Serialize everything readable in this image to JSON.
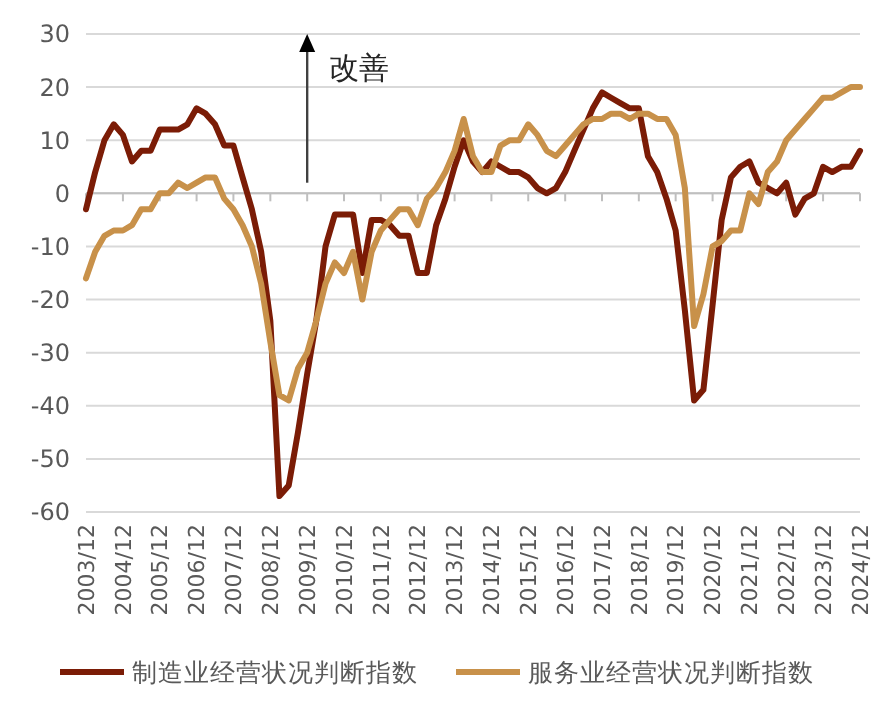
{
  "chart_data": {
    "type": "line",
    "annotations": [
      "改善"
    ],
    "x": [
      "2003-12",
      "2004-03",
      "2004-06",
      "2004-09",
      "2004-12",
      "2005-03",
      "2005-06",
      "2005-09",
      "2005-12",
      "2006-03",
      "2006-06",
      "2006-09",
      "2006-12",
      "2007-03",
      "2007-06",
      "2007-09",
      "2007-12",
      "2008-03",
      "2008-06",
      "2008-09",
      "2008-12",
      "2009-03",
      "2009-06",
      "2009-09",
      "2009-12",
      "2010-03",
      "2010-06",
      "2010-09",
      "2010-12",
      "2011-03",
      "2011-06",
      "2011-09",
      "2011-12",
      "2012-03",
      "2012-06",
      "2012-09",
      "2012-12",
      "2013-03",
      "2013-06",
      "2013-09",
      "2013-12",
      "2014-03",
      "2014-06",
      "2014-09",
      "2014-12",
      "2015-03",
      "2015-06",
      "2015-09",
      "2015-12",
      "2016-03",
      "2016-06",
      "2016-09",
      "2016-12",
      "2017-03",
      "2017-06",
      "2017-09",
      "2017-12",
      "2018-03",
      "2018-06",
      "2018-09",
      "2018-12",
      "2019-03",
      "2019-06",
      "2019-09",
      "2019-12",
      "2020-03",
      "2020-06",
      "2020-09",
      "2020-12",
      "2021-03",
      "2021-06",
      "2021-09",
      "2021-12",
      "2022-03",
      "2022-06",
      "2022-09",
      "2022-12",
      "2023-03",
      "2023-06",
      "2023-09",
      "2023-12",
      "2024-03",
      "2024-06",
      "2024-09",
      "2024-12"
    ],
    "series": [
      {
        "name": "制造业经营状况判断指数",
        "color": "#7b1c06",
        "values": [
          -3,
          4,
          10,
          13,
          11,
          6,
          8,
          8,
          12,
          12,
          12,
          13,
          16,
          15,
          13,
          9,
          9,
          3,
          -3,
          -11,
          -24,
          -57,
          -55,
          -45,
          -34,
          -24,
          -10,
          -4,
          -4,
          -4,
          -15,
          -5,
          -5,
          -6,
          -8,
          -8,
          -15,
          -15,
          -6,
          -1,
          5,
          10,
          6,
          4,
          6,
          5,
          4,
          4,
          3,
          1,
          0,
          1,
          4,
          8,
          12,
          16,
          19,
          18,
          17,
          16,
          16,
          7,
          4,
          -1,
          -7,
          -22,
          -39,
          -37,
          -21,
          -5,
          3,
          5,
          6,
          2,
          1,
          0,
          2,
          -4,
          -1,
          0,
          5,
          4,
          5,
          5,
          8
        ]
      },
      {
        "name": "服务业经营状况判断指数",
        "color": "#c8914a",
        "values": [
          -16,
          -11,
          -8,
          -7,
          -7,
          -6,
          -3,
          -3,
          0,
          0,
          2,
          1,
          2,
          3,
          3,
          -1,
          -3,
          -6,
          -10,
          -17,
          -28,
          -38,
          -39,
          -33,
          -30,
          -24,
          -17,
          -13,
          -15,
          -11,
          -20,
          -11,
          -7,
          -5,
          -3,
          -3,
          -6,
          -1,
          1,
          4,
          8,
          14,
          7,
          4,
          4,
          9,
          10,
          10,
          13,
          11,
          8,
          7,
          9,
          11,
          13,
          14,
          14,
          15,
          15,
          14,
          15,
          15,
          14,
          14,
          11,
          1,
          -25,
          -19,
          -10,
          -9,
          -7,
          -7,
          0,
          -2,
          4,
          6,
          10,
          12,
          14,
          16,
          18,
          18,
          19,
          20,
          20
        ]
      }
    ],
    "xlim": [
      "2003-12",
      "2024-12"
    ],
    "xticks": [
      {
        "value": "2003-12",
        "label": "2003/12"
      },
      {
        "value": "2004-12",
        "label": "2004/12"
      },
      {
        "value": "2005-12",
        "label": "2005/12"
      },
      {
        "value": "2006-12",
        "label": "2006/12"
      },
      {
        "value": "2007-12",
        "label": "2007/12"
      },
      {
        "value": "2008-12",
        "label": "2008/12"
      },
      {
        "value": "2009-12",
        "label": "2009/12"
      },
      {
        "value": "2010-12",
        "label": "2010/12"
      },
      {
        "value": "2011-12",
        "label": "2011/12"
      },
      {
        "value": "2012-12",
        "label": "2012/12"
      },
      {
        "value": "2013-12",
        "label": "2013/12"
      },
      {
        "value": "2014-12",
        "label": "2014/12"
      },
      {
        "value": "2015-12",
        "label": "2015/12"
      },
      {
        "value": "2016-12",
        "label": "2016/12"
      },
      {
        "value": "2017-12",
        "label": "2017/12"
      },
      {
        "value": "2018-12",
        "label": "2018/12"
      },
      {
        "value": "2019-12",
        "label": "2019/12"
      },
      {
        "value": "2020-12",
        "label": "2020/12"
      },
      {
        "value": "2021-12",
        "label": "2021/12"
      },
      {
        "value": "2022-12",
        "label": "2022/12"
      },
      {
        "value": "2023-12",
        "label": "2023/12"
      },
      {
        "value": "2024-12",
        "label": "2024/12"
      }
    ],
    "ylim": [
      -60,
      30
    ],
    "yticks": [
      -60,
      -50,
      -40,
      -30,
      -20,
      -10,
      0,
      10,
      20,
      30
    ],
    "grid": "y",
    "legend": "bottom",
    "line_style": "solid",
    "marker": "none"
  }
}
